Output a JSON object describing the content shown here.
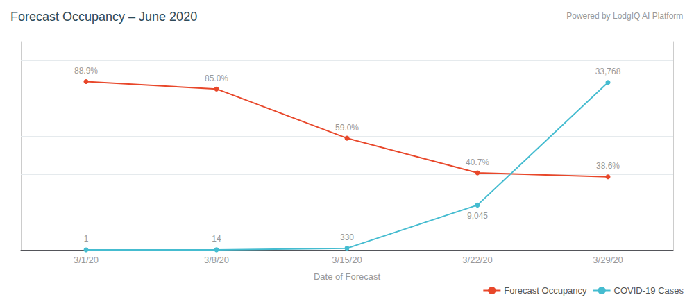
{
  "chart_data": {
    "type": "line",
    "title": "Forecast Occupancy – June 2020",
    "annotations": [
      "Powered by LodgIQ AI Platform"
    ],
    "xlabel": "Date of Forecast",
    "categories": [
      "3/1/20",
      "3/8/20",
      "3/15/20",
      "3/22/20",
      "3/29/20"
    ],
    "series": [
      {
        "name": "Forecast Occupancy",
        "color": "#E8472A",
        "marker": "circle",
        "values": [
          88.9,
          85.0,
          59.0,
          40.7,
          38.6
        ],
        "value_labels": [
          "88.9%",
          "85.0%",
          "59.0%",
          "40.7%",
          "38.6%"
        ]
      },
      {
        "name": "COVID-19 Cases",
        "color": "#45BCD0",
        "marker": "circle",
        "axis": "y2",
        "values": [
          1,
          14,
          330,
          9045,
          33768
        ],
        "value_labels": [
          "1",
          "14",
          "330",
          "9,045",
          "33,768"
        ]
      }
    ],
    "ylim": [
      0,
      110
    ],
    "yticks": [
      20,
      40,
      60,
      80,
      100
    ],
    "y2lim": [
      0,
      42000
    ],
    "grid": true,
    "legend": "bottom right",
    "data_labels": true,
    "tick_labels": "x"
  }
}
